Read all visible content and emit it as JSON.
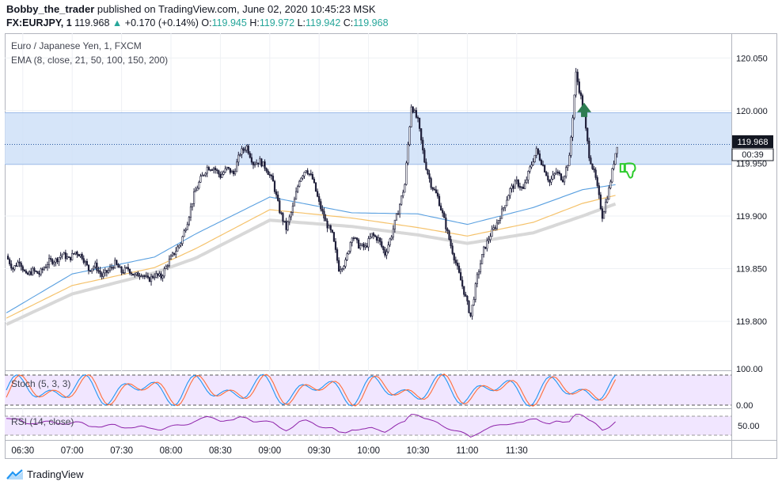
{
  "header": {
    "author": "Bobby_the_trader",
    "published": "published on TradingView.com, June 02, 2020 10:45:23 MSK",
    "symbol": "FX:EURJPY, 1",
    "last": "119.968",
    "change": "+0.170 (+0.14%)",
    "o_label": "O:",
    "o": "119.945",
    "h_label": "H:",
    "h": "119.972",
    "l_label": "L:",
    "l": "119.942",
    "c_label": "C:",
    "c": "119.968"
  },
  "legend": {
    "title": "Euro / Japanese Yen, 1, FXCM",
    "ema": "EMA (8, close, 21, 50, 100, 150, 200)",
    "stoch": "Stoch (5, 3, 3)",
    "rsi": "RSI (14, close)"
  },
  "price_badges": {
    "current": "119.968",
    "countdown": "00:39"
  },
  "footer": {
    "brand": "TradingView"
  },
  "colors": {
    "up_candle": "#ffffff",
    "down_candle": "#1f1f3a",
    "zone": "#cfe0f8",
    "ema_fast": "#5aa0e0",
    "ema_mid": "#f5c26b",
    "ema_slow": "#d8d8d8",
    "stoch_k": "#2196f3",
    "stoch_d": "#ff6d3a",
    "rsi": "#8e24aa",
    "pane_fill": "#f1e6ff",
    "buy_arrow": "#2e7d52",
    "thumbs": "#2ecc2e"
  },
  "chart_data": {
    "type": "candlestick",
    "time_ticks": [
      "06:30",
      "07:00",
      "07:30",
      "08:00",
      "08:30",
      "09:00",
      "09:30",
      "10:00",
      "10:30",
      "11:00",
      "11:30"
    ],
    "price_ticks": [
      "120.050",
      "120.000",
      "119.950",
      "119.900",
      "119.850",
      "119.800"
    ],
    "stoch_ticks": [
      "100.00",
      "0.00"
    ],
    "rsi_ticks": [
      "50.00"
    ],
    "ylim": [
      119.755,
      120.072
    ],
    "zone": [
      119.949,
      119.998
    ],
    "candles_per_hour": 60,
    "start_time": "06:20",
    "close_path": [
      [
        0,
        119.862
      ],
      [
        4,
        119.85
      ],
      [
        8,
        119.858
      ],
      [
        12,
        119.843
      ],
      [
        16,
        119.848
      ],
      [
        20,
        119.845
      ],
      [
        26,
        119.857
      ],
      [
        30,
        119.858
      ],
      [
        34,
        119.864
      ],
      [
        38,
        119.859
      ],
      [
        42,
        119.866
      ],
      [
        46,
        119.862
      ],
      [
        50,
        119.849
      ],
      [
        54,
        119.853
      ],
      [
        58,
        119.843
      ],
      [
        62,
        119.848
      ],
      [
        66,
        119.855
      ],
      [
        70,
        119.847
      ],
      [
        74,
        119.85
      ],
      [
        78,
        119.843
      ],
      [
        82,
        119.846
      ],
      [
        86,
        119.839
      ],
      [
        90,
        119.844
      ],
      [
        94,
        119.842
      ],
      [
        98,
        119.855
      ],
      [
        102,
        119.865
      ],
      [
        106,
        119.875
      ],
      [
        110,
        119.895
      ],
      [
        114,
        119.92
      ],
      [
        118,
        119.935
      ],
      [
        122,
        119.946
      ],
      [
        126,
        119.946
      ],
      [
        130,
        119.938
      ],
      [
        134,
        119.945
      ],
      [
        138,
        119.94
      ],
      [
        142,
        119.96
      ],
      [
        146,
        119.966
      ],
      [
        150,
        119.95
      ],
      [
        154,
        119.952
      ],
      [
        158,
        119.945
      ],
      [
        162,
        119.932
      ],
      [
        166,
        119.905
      ],
      [
        170,
        119.888
      ],
      [
        174,
        119.908
      ],
      [
        178,
        119.935
      ],
      [
        182,
        119.945
      ],
      [
        186,
        119.935
      ],
      [
        190,
        119.912
      ],
      [
        194,
        119.894
      ],
      [
        198,
        119.882
      ],
      [
        202,
        119.85
      ],
      [
        206,
        119.856
      ],
      [
        210,
        119.882
      ],
      [
        214,
        119.872
      ],
      [
        218,
        119.87
      ],
      [
        222,
        119.882
      ],
      [
        226,
        119.878
      ],
      [
        230,
        119.864
      ],
      [
        234,
        119.882
      ],
      [
        238,
        119.905
      ],
      [
        242,
        119.93
      ],
      [
        246,
        120.005
      ],
      [
        250,
        119.99
      ],
      [
        254,
        119.952
      ],
      [
        258,
        119.93
      ],
      [
        262,
        119.918
      ],
      [
        266,
        119.896
      ],
      [
        270,
        119.872
      ],
      [
        274,
        119.85
      ],
      [
        278,
        119.828
      ],
      [
        282,
        119.805
      ],
      [
        286,
        119.842
      ],
      [
        290,
        119.868
      ],
      [
        294,
        119.882
      ],
      [
        298,
        119.893
      ],
      [
        302,
        119.908
      ],
      [
        306,
        119.925
      ],
      [
        310,
        119.932
      ],
      [
        314,
        119.925
      ],
      [
        318,
        119.945
      ],
      [
        322,
        119.962
      ],
      [
        326,
        119.948
      ],
      [
        330,
        119.932
      ],
      [
        334,
        119.942
      ],
      [
        338,
        119.935
      ],
      [
        342,
        119.955
      ],
      [
        346,
        120.035
      ],
      [
        350,
        120.005
      ],
      [
        354,
        119.958
      ],
      [
        358,
        119.935
      ],
      [
        362,
        119.9
      ],
      [
        366,
        119.925
      ],
      [
        370,
        119.96
      ],
      [
        371,
        119.968
      ]
    ],
    "ema_fast": [
      [
        0,
        119.808
      ],
      [
        40,
        119.845
      ],
      [
        90,
        119.861
      ],
      [
        115,
        119.883
      ],
      [
        160,
        119.918
      ],
      [
        210,
        119.903
      ],
      [
        250,
        119.902
      ],
      [
        280,
        119.892
      ],
      [
        320,
        119.908
      ],
      [
        350,
        119.925
      ],
      [
        371,
        119.93
      ]
    ],
    "ema_mid": [
      [
        0,
        119.803
      ],
      [
        40,
        119.834
      ],
      [
        90,
        119.851
      ],
      [
        115,
        119.869
      ],
      [
        160,
        119.906
      ],
      [
        210,
        119.898
      ],
      [
        250,
        119.889
      ],
      [
        280,
        119.881
      ],
      [
        320,
        119.894
      ],
      [
        350,
        119.912
      ],
      [
        371,
        119.92
      ]
    ],
    "ema_slow": [
      [
        0,
        119.797
      ],
      [
        40,
        119.826
      ],
      [
        90,
        119.846
      ],
      [
        115,
        119.86
      ],
      [
        160,
        119.896
      ],
      [
        210,
        119.89
      ],
      [
        250,
        119.882
      ],
      [
        280,
        119.874
      ],
      [
        320,
        119.884
      ],
      [
        350,
        119.9
      ],
      [
        371,
        119.912
      ]
    ]
  }
}
